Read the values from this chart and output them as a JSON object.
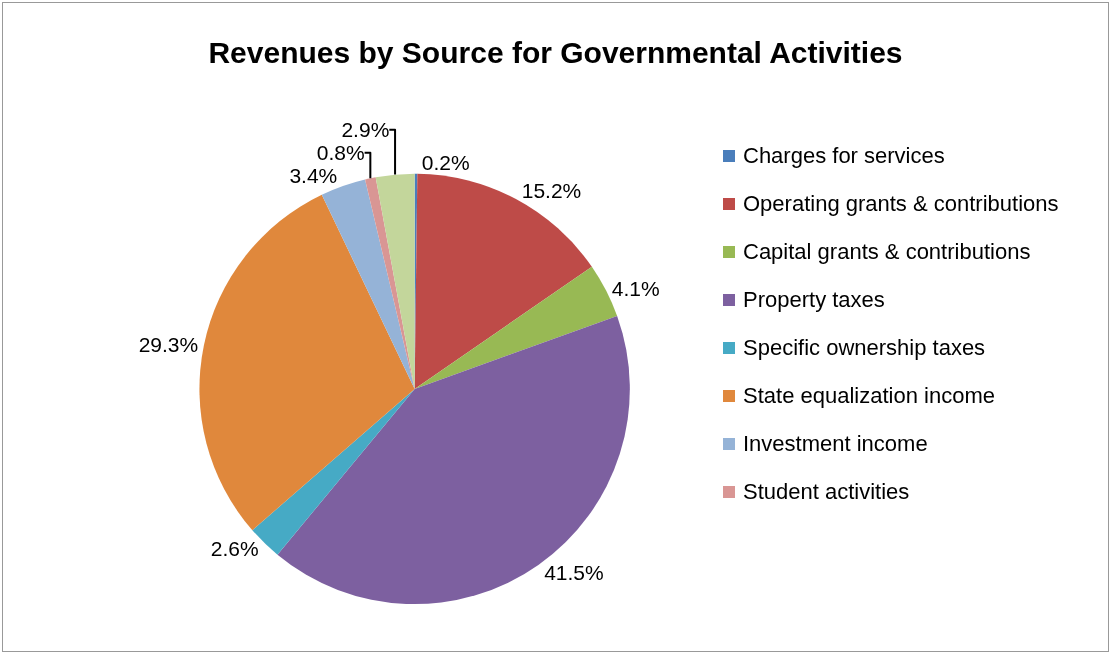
{
  "chart_data": {
    "type": "pie",
    "title": "Revenues by Source for Governmental Activities",
    "categories": [
      "Charges for services",
      "Operating grants & contributions",
      "Capital grants & contributions",
      "Property taxes",
      "Specific ownership taxes",
      "State equalization income",
      "Investment income",
      "Student activities",
      null
    ],
    "values": [
      0.2,
      15.2,
      4.1,
      41.5,
      2.6,
      29.3,
      3.4,
      0.8,
      2.9
    ],
    "value_labels": [
      "0.2%",
      "15.2%",
      "4.1%",
      "41.5%",
      "2.6%",
      "29.3%",
      "3.4%",
      "0.8%",
      "2.9%"
    ],
    "colors": [
      "#4a7ebb",
      "#be4b48",
      "#98b954",
      "#7d60a0",
      "#46aac5",
      "#e0883c",
      "#95b3d7",
      "#d99694",
      "#c3d69b"
    ],
    "legend": "right"
  }
}
